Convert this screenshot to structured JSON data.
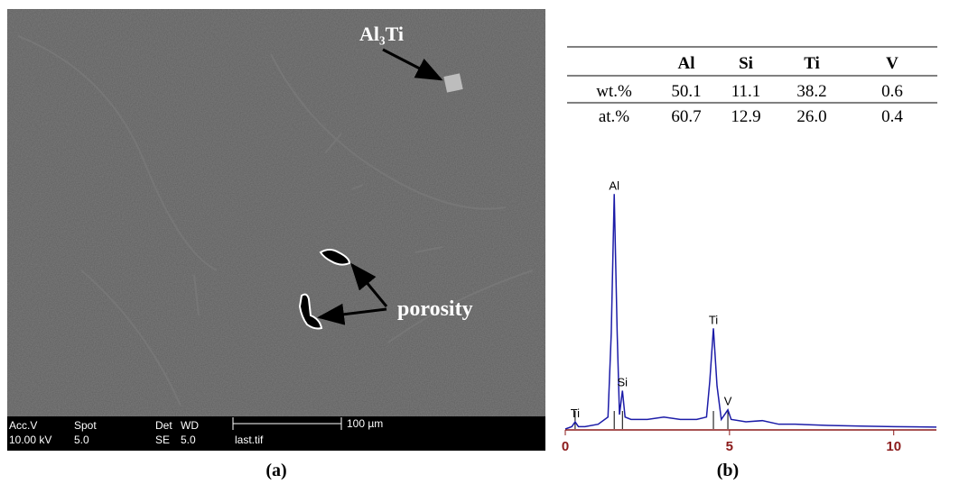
{
  "panel_a": {
    "annotations": [
      "Al₃Ti",
      "porosity"
    ],
    "info_bar": {
      "row1": [
        "Acc.V",
        "Spot",
        "Det",
        "WD"
      ],
      "row2": [
        "10.00 kV",
        "5.0",
        "SE",
        "5.0",
        "last.tif"
      ],
      "scale_bar": "100 µm"
    },
    "caption": "(a)"
  },
  "table": {
    "columns": [
      "Al",
      "Si",
      "Ti",
      "V"
    ],
    "rows": [
      {
        "label": "wt.%",
        "values": [
          "50.1",
          "11.1",
          "38.2",
          "0.6"
        ]
      },
      {
        "label": "at.%",
        "values": [
          "60.7",
          "12.9",
          "26.0",
          "0.4"
        ]
      }
    ]
  },
  "chart_data": {
    "type": "line",
    "x": [
      0,
      0.2,
      0.3,
      0.4,
      0.6,
      1.0,
      1.3,
      1.4,
      1.49,
      1.58,
      1.65,
      1.74,
      1.82,
      2.0,
      2.5,
      3.0,
      3.5,
      4.0,
      4.3,
      4.4,
      4.51,
      4.62,
      4.75,
      4.85,
      4.95,
      5.05,
      5.5,
      6.0,
      6.5,
      7.0,
      8.0,
      9.0,
      10.0,
      11.3
    ],
    "series": [
      {
        "color": "#1c1ca8",
        "values": [
          0,
          1,
          3,
          1,
          1,
          2,
          5,
          40,
          98,
          40,
          6,
          16,
          5,
          4,
          4,
          5,
          4,
          4,
          5,
          20,
          42,
          18,
          4,
          6,
          8,
          4,
          3,
          3.5,
          2,
          2,
          1.5,
          1.2,
          1,
          0.8
        ]
      }
    ],
    "xlim": [
      0,
      11.3
    ],
    "ylim": [
      0,
      100
    ],
    "xticks": [
      0,
      5,
      10
    ],
    "axis_color": "#8b1a1a",
    "peak_labels": [
      {
        "text": "Ti",
        "x": 0.3
      },
      {
        "text": "Al",
        "x": 1.49
      },
      {
        "text": "Si",
        "x": 1.74
      },
      {
        "text": "Ti",
        "x": 4.51
      },
      {
        "text": "V",
        "x": 4.95
      }
    ],
    "caption": "(b)"
  }
}
